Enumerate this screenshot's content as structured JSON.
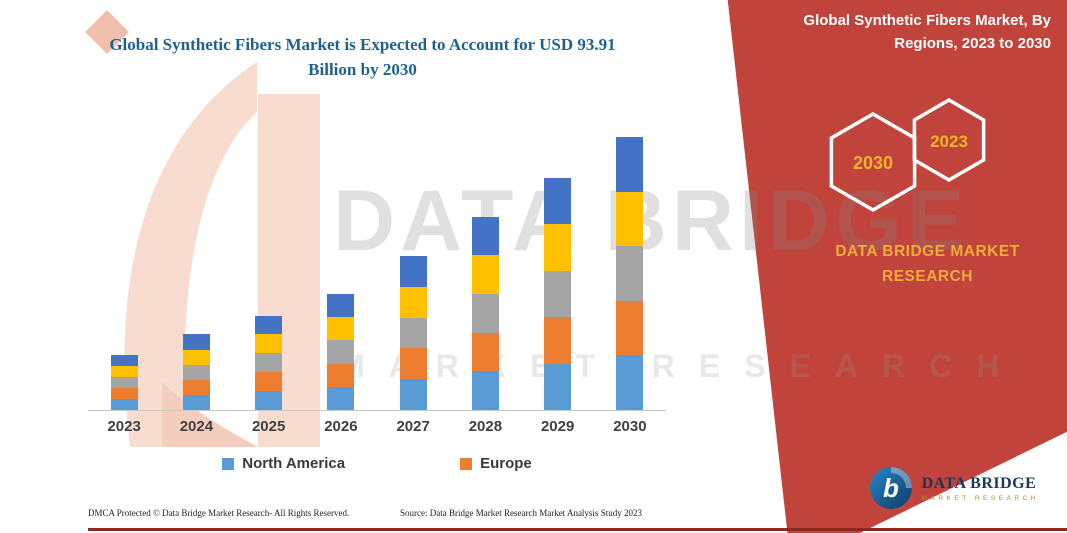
{
  "header": {
    "left_title": "Global Synthetic Fibers Market is Expected to Account for USD 93.91 Billion by 2030",
    "right_title": "Global Synthetic Fibers Market, By Regions, 2023 to 2030"
  },
  "right_panel": {
    "hexagon_years": [
      "2030",
      "2023"
    ],
    "brand_lines": [
      "DATA BRIDGE MARKET",
      "RESEARCH"
    ]
  },
  "watermark": {
    "primary": "DATA BRIDGE",
    "secondary": "MARKET RESEARCH"
  },
  "footer": {
    "dmca": "DMCA Protected © Data Bridge Market Research-  All Rights Reserved.",
    "source": "Source: Data Bridge Market Research  Market Analysis Study 2023"
  },
  "logo": {
    "mark": "b",
    "name": "DATA BRIDGE",
    "subtitle": "MARKET RESEARCH"
  },
  "colors": {
    "red_panel": "#c0443c",
    "accent_yellow": "#efac3a",
    "title_blue": "#1f618d",
    "bottom_bar": "#8c2a21"
  },
  "chart_data": {
    "type": "bar",
    "stacked": true,
    "title": "Global Synthetic Fibers Market is Expected to Account for USD 93.91 Billion by 2030",
    "value_unit": "USD Billion",
    "categories": [
      "2023",
      "2024",
      "2025",
      "2026",
      "2027",
      "2028",
      "2029",
      "2030"
    ],
    "series": [
      {
        "name": "North America",
        "color": "#5b9bd5",
        "values": [
          3.8,
          5.2,
          6.5,
          8.0,
          10.6,
          13.3,
          16.0,
          18.78
        ]
      },
      {
        "name": "Europe",
        "color": "#ed7d31",
        "values": [
          3.8,
          5.2,
          6.5,
          8.0,
          10.6,
          13.3,
          16.0,
          18.78
        ]
      },
      {
        "name": "",
        "color": "#a5a5a5",
        "values": [
          3.8,
          5.2,
          6.5,
          8.0,
          10.6,
          13.3,
          16.0,
          18.78
        ]
      },
      {
        "name": "",
        "color": "#ffc000",
        "values": [
          3.8,
          5.2,
          6.5,
          8.0,
          10.6,
          13.3,
          16.0,
          18.78
        ]
      },
      {
        "name": "",
        "color": "#4472c4",
        "values": [
          3.8,
          5.2,
          6.5,
          8.0,
          10.6,
          13.3,
          16.0,
          18.79
        ]
      }
    ],
    "totals_estimated": [
      19.0,
      26.0,
      32.5,
      40.0,
      53.0,
      66.5,
      80.0,
      93.91
    ],
    "legend": [
      "North America",
      "Europe"
    ],
    "legend_position": "bottom",
    "xlabel": "",
    "ylabel": "",
    "ylim": [
      0,
      100
    ],
    "grid": false
  }
}
